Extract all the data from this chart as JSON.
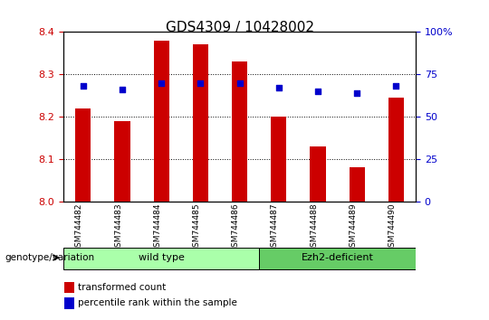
{
  "title": "GDS4309 / 10428002",
  "samples": [
    "GSM744482",
    "GSM744483",
    "GSM744484",
    "GSM744485",
    "GSM744486",
    "GSM744487",
    "GSM744488",
    "GSM744489",
    "GSM744490"
  ],
  "bar_values": [
    8.22,
    8.19,
    8.38,
    8.37,
    8.33,
    8.2,
    8.13,
    8.08,
    8.245
  ],
  "percentile_values": [
    68,
    66,
    70,
    70,
    70,
    67,
    65,
    64,
    68
  ],
  "bar_color": "#cc0000",
  "percentile_color": "#0000cc",
  "ylim_left": [
    8.0,
    8.4
  ],
  "ylim_right": [
    0,
    100
  ],
  "yticks_left": [
    8.0,
    8.1,
    8.2,
    8.3,
    8.4
  ],
  "yticks_right": [
    0,
    25,
    50,
    75,
    100
  ],
  "groups": [
    {
      "label": "wild type",
      "start": 0,
      "end": 5,
      "color": "#aaffaa"
    },
    {
      "label": "Ezh2-deficient",
      "start": 5,
      "end": 9,
      "color": "#66cc66"
    }
  ],
  "group_label_prefix": "genotype/variation",
  "legend_bar_label": "transformed count",
  "legend_dot_label": "percentile rank within the sample",
  "bg_color": "#ffffff",
  "plot_bg_color": "#ffffff",
  "tick_color_left": "#cc0000",
  "tick_color_right": "#0000cc",
  "grid_color": "#000000",
  "bar_width": 0.4
}
